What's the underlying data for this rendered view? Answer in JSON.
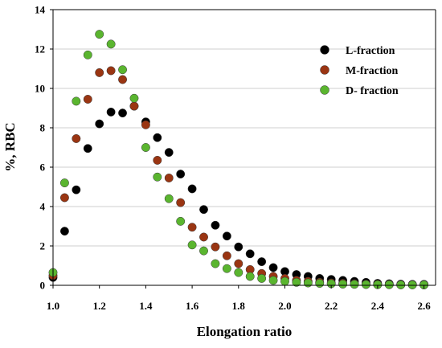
{
  "chart_data": {
    "type": "scatter",
    "xlabel": "Elongation ratio",
    "ylabel": "%, RBC",
    "xlim": [
      1.0,
      2.65
    ],
    "ylim": [
      0,
      14
    ],
    "x_ticks": [
      "1.0",
      "1.2",
      "1.4",
      "1.6",
      "1.8",
      "2.0",
      "2.2",
      "2.4",
      "2.6"
    ],
    "y_ticks": [
      "0",
      "2",
      "4",
      "6",
      "8",
      "10",
      "12",
      "14"
    ],
    "legend_position": "top-right",
    "series": [
      {
        "name": "L-fraction",
        "color": "#000000",
        "x": [
          1.0,
          1.05,
          1.1,
          1.15,
          1.2,
          1.25,
          1.3,
          1.35,
          1.4,
          1.45,
          1.5,
          1.55,
          1.6,
          1.65,
          1.7,
          1.75,
          1.8,
          1.85,
          1.9,
          1.95,
          2.0,
          2.05,
          2.1,
          2.15,
          2.2,
          2.25,
          2.3,
          2.35,
          2.4,
          2.45,
          2.5,
          2.55,
          2.6
        ],
        "y": [
          0.4,
          2.75,
          4.85,
          6.95,
          8.2,
          8.8,
          8.75,
          9.1,
          8.3,
          7.5,
          6.75,
          5.65,
          4.9,
          3.85,
          3.05,
          2.5,
          1.95,
          1.6,
          1.2,
          0.9,
          0.7,
          0.55,
          0.45,
          0.35,
          0.3,
          0.25,
          0.2,
          0.15,
          0.1,
          0.08,
          0.06,
          0.05,
          0.05
        ]
      },
      {
        "name": "M-fraction",
        "color": "#9a3512",
        "x": [
          1.0,
          1.05,
          1.1,
          1.15,
          1.2,
          1.25,
          1.3,
          1.35,
          1.4,
          1.45,
          1.5,
          1.55,
          1.6,
          1.65,
          1.7,
          1.75,
          1.8,
          1.85,
          1.9,
          1.95,
          2.0,
          2.05,
          2.1,
          2.15,
          2.2,
          2.25,
          2.3,
          2.35,
          2.4,
          2.45,
          2.5,
          2.55,
          2.6
        ],
        "y": [
          0.5,
          4.45,
          7.45,
          9.45,
          10.8,
          10.9,
          10.45,
          9.1,
          8.15,
          6.35,
          5.45,
          4.2,
          2.95,
          2.45,
          1.95,
          1.5,
          1.1,
          0.8,
          0.6,
          0.45,
          0.35,
          0.25,
          0.2,
          0.15,
          0.12,
          0.1,
          0.08,
          0.06,
          0.05,
          0.04,
          0.03,
          0.03,
          0.02
        ]
      },
      {
        "name": "D- fraction",
        "color": "#5ab52f",
        "x": [
          1.0,
          1.05,
          1.1,
          1.15,
          1.2,
          1.25,
          1.3,
          1.35,
          1.4,
          1.45,
          1.5,
          1.55,
          1.6,
          1.65,
          1.7,
          1.75,
          1.8,
          1.85,
          1.9,
          1.95,
          2.0,
          2.05,
          2.1,
          2.15,
          2.2,
          2.25,
          2.3,
          2.35,
          2.4,
          2.45,
          2.5,
          2.55,
          2.6
        ],
        "y": [
          0.65,
          5.2,
          9.35,
          11.7,
          12.75,
          12.25,
          10.95,
          9.5,
          7.0,
          5.5,
          4.4,
          3.25,
          2.05,
          1.75,
          1.1,
          0.85,
          0.65,
          0.45,
          0.35,
          0.25,
          0.2,
          0.15,
          0.12,
          0.1,
          0.08,
          0.06,
          0.05,
          0.04,
          0.03,
          0.03,
          0.02,
          0.02,
          0.02
        ]
      }
    ]
  }
}
